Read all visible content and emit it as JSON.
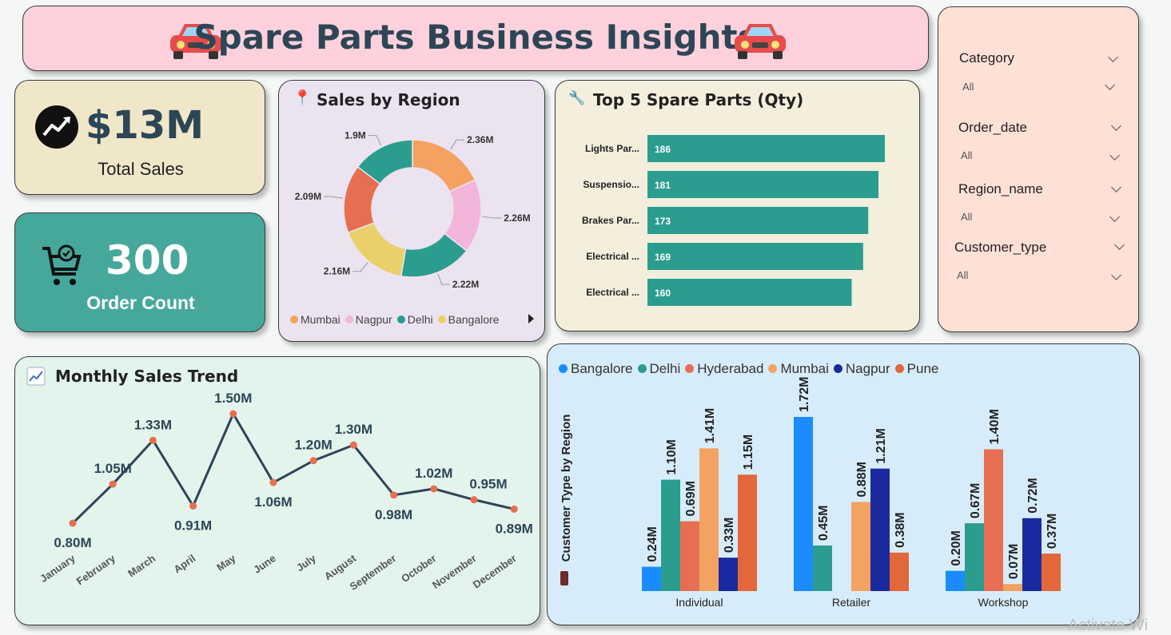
{
  "header": {
    "title": "Spare Parts Business Insights"
  },
  "kpis": {
    "total_sales": {
      "value": "$13M",
      "label": "Total Sales"
    },
    "order_count": {
      "value": "300",
      "label": "Order Count"
    }
  },
  "colors": {
    "teal": "#2a9d8f",
    "orange": "#f4a261",
    "pink": "#f3b5da",
    "coral": "#e76f51",
    "yellow": "#e9d06a",
    "navy": "#2d4656",
    "blue": "#1a8cff",
    "darkblue": "#1a2a9e",
    "pune": "#e2673a"
  },
  "filters": [
    {
      "label": "Category",
      "value": "All"
    },
    {
      "label": "Order_date",
      "value": "All"
    },
    {
      "label": "Region_name",
      "value": "All"
    },
    {
      "label": "Customer_type",
      "value": "All"
    }
  ],
  "watermark": "Activate Wi",
  "chart_data": [
    {
      "type": "pie",
      "title": "Sales by Region",
      "slices": [
        {
          "name": "Mumbai",
          "value": 2.36,
          "label": "2.36M",
          "color": "#f4a261"
        },
        {
          "name": "Nagpur",
          "value": 2.26,
          "label": "2.26M",
          "color": "#f3b5da"
        },
        {
          "name": "Delhi",
          "value": 2.22,
          "label": "2.22M",
          "color": "#2a9d8f"
        },
        {
          "name": "Bangalore",
          "value": 2.16,
          "label": "2.16M",
          "color": "#e9d06a"
        },
        {
          "name": "",
          "value": 2.09,
          "label": "2.09M",
          "color": "#e76f51"
        },
        {
          "name": "",
          "value": 1.9,
          "label": "1.9M",
          "color": "#2a9d8f"
        }
      ],
      "legend": [
        "Mumbai",
        "Nagpur",
        "Delhi",
        "Bangalore"
      ]
    },
    {
      "type": "bar",
      "title": "Top 5 Spare Parts (Qty)",
      "categories": [
        "Lights Par...",
        "Suspensio...",
        "Brakes Par...",
        "Electrical ...",
        "Electrical ..."
      ],
      "values": [
        186,
        181,
        173,
        169,
        160
      ],
      "xlim": [
        0,
        186
      ]
    },
    {
      "type": "line",
      "title": "Monthly Sales Trend",
      "categories": [
        "January",
        "February",
        "March",
        "April",
        "May",
        "June",
        "July",
        "August",
        "September",
        "October",
        "November",
        "December"
      ],
      "values": [
        0.8,
        1.05,
        1.33,
        0.91,
        1.5,
        1.06,
        1.2,
        1.3,
        0.98,
        1.02,
        0.95,
        0.89
      ],
      "labels": [
        "0.80M",
        "1.05M",
        "1.33M",
        "0.91M",
        "1.50M",
        "1.06M",
        "1.20M",
        "1.30M",
        "0.98M",
        "1.02M",
        "0.95M",
        "0.89M"
      ]
    },
    {
      "type": "bar",
      "ylabel": "Customer Type by Region",
      "categories": [
        "Individual",
        "Retailer",
        "Workshop"
      ],
      "series": [
        {
          "name": "Bangalore",
          "color": "#1a8cff",
          "values": [
            0.24,
            1.72,
            0.2
          ]
        },
        {
          "name": "Delhi",
          "color": "#2a9d8f",
          "values": [
            1.1,
            0.45,
            0.67
          ]
        },
        {
          "name": "Hyderabad",
          "color": "#e76f51",
          "values": [
            0.69,
            null,
            1.4
          ]
        },
        {
          "name": "Mumbai",
          "color": "#f4a261",
          "values": [
            1.41,
            0.88,
            0.07
          ]
        },
        {
          "name": "Nagpur",
          "color": "#1a2a9e",
          "values": [
            0.33,
            1.21,
            0.72
          ]
        },
        {
          "name": "Pune",
          "color": "#e2673a",
          "values": [
            1.15,
            0.38,
            0.37
          ]
        }
      ],
      "ylim": [
        0,
        1.72
      ]
    }
  ]
}
